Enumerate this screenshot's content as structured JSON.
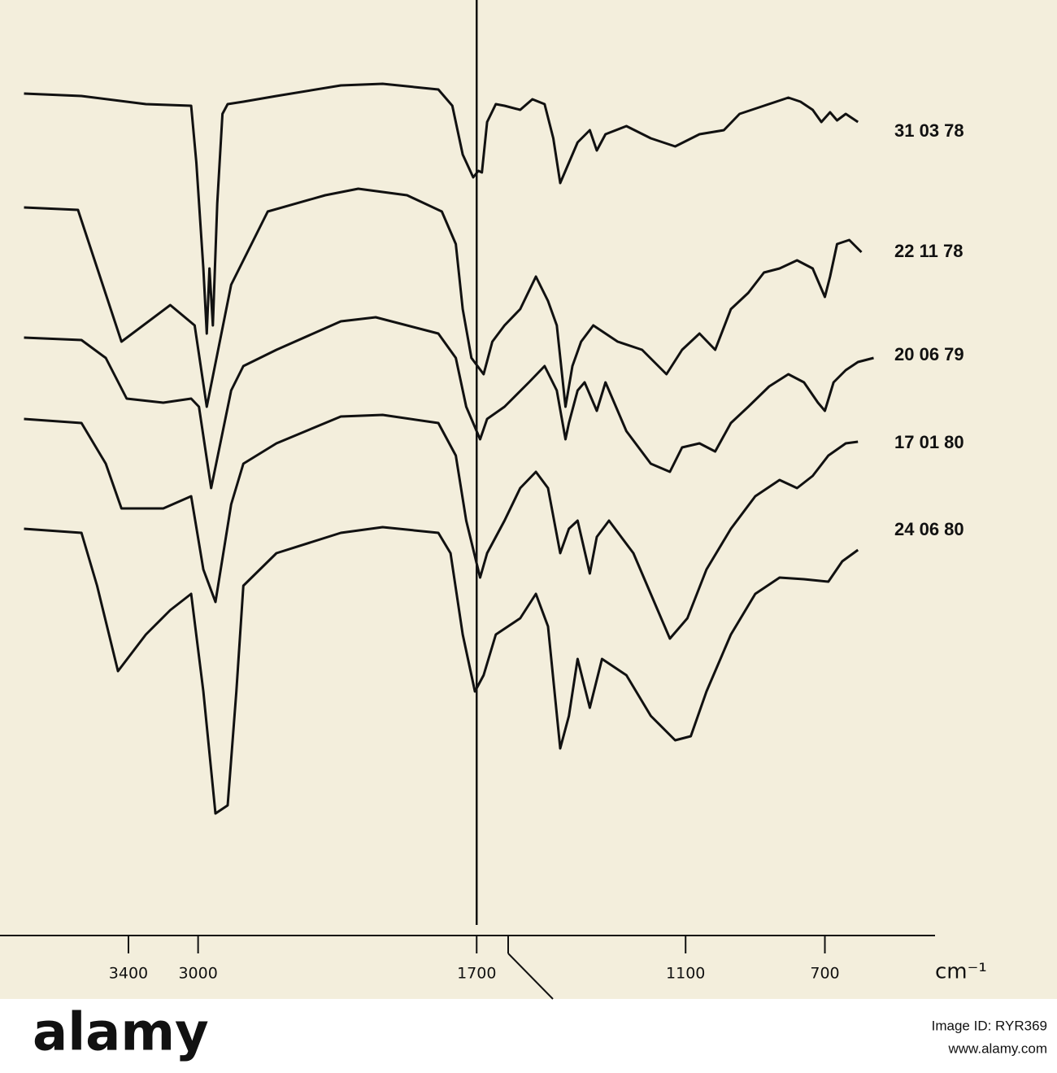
{
  "chart_data": {
    "type": "line",
    "xlabel": "cm⁻¹",
    "xlim": [
      4000,
      400
    ],
    "ylim": [
      0,
      115
    ],
    "xticks": [
      3400,
      3000,
      1700,
      1100,
      700
    ],
    "grid": false,
    "series": [
      {
        "name": "31 03 78",
        "color": "#111111",
        "x": [
          4000,
          3670,
          3300,
          3040,
          3010,
          2970,
          2950,
          2935,
          2915,
          2890,
          2860,
          2830,
          2740,
          2550,
          2180,
          1970,
          1810,
          1770,
          1740,
          1710,
          1695,
          1685,
          1670,
          1645,
          1620,
          1575,
          1540,
          1505,
          1480,
          1460,
          1435,
          1410,
          1375,
          1355,
          1330,
          1270,
          1200,
          1130,
          1060,
          990,
          945,
          875,
          805,
          770,
          735,
          710,
          685,
          665,
          640,
          605
        ],
        "values": [
          103.5,
          103.2,
          102.2,
          102,
          95,
          82,
          74,
          82,
          75,
          90,
          101,
          102.2,
          102.5,
          103.2,
          104.5,
          104.7,
          104,
          102,
          96,
          93.2,
          94,
          93.8,
          100,
          102.2,
          102,
          101.5,
          102.8,
          102.2,
          98,
          92.5,
          95,
          97.5,
          99,
          96.5,
          98.5,
          99.5,
          98,
          97,
          98.5,
          99,
          101,
          102,
          103,
          102.5,
          101.5,
          100,
          101.2,
          100.2,
          101,
          100
        ]
      },
      {
        "name": "22 11 78",
        "color": "#111111",
        "x": [
          4000,
          3690,
          3440,
          3160,
          3020,
          2950,
          2810,
          2740,
          2600,
          2270,
          2080,
          1900,
          1800,
          1760,
          1740,
          1715,
          1680,
          1655,
          1620,
          1575,
          1530,
          1495,
          1470,
          1445,
          1425,
          1400,
          1365,
          1330,
          1295,
          1225,
          1155,
          1110,
          1060,
          1015,
          970,
          920,
          875,
          830,
          780,
          735,
          700,
          685,
          665,
          630,
          595
        ],
        "values": [
          89.5,
          89.2,
          73,
          77.5,
          75,
          65,
          80,
          83,
          89,
          91,
          91.8,
          91,
          89,
          85,
          77,
          71,
          69,
          73,
          75,
          77,
          81,
          78,
          75,
          65,
          70,
          73,
          75,
          74,
          73,
          72,
          69,
          72,
          74,
          72,
          77,
          79,
          81.5,
          82,
          83,
          82,
          78.5,
          81,
          85,
          85.5,
          84
        ]
      },
      {
        "name": "20 06 79",
        "color": "#111111",
        "x": [
          4000,
          3670,
          3530,
          3410,
          3200,
          3040,
          2995,
          2925,
          2810,
          2740,
          2550,
          2180,
          1990,
          1810,
          1760,
          1730,
          1690,
          1670,
          1620,
          1550,
          1505,
          1470,
          1445,
          1435,
          1410,
          1390,
          1355,
          1330,
          1270,
          1200,
          1145,
          1110,
          1060,
          1015,
          970,
          920,
          860,
          805,
          760,
          720,
          700,
          675,
          640,
          605,
          560
        ],
        "values": [
          73.5,
          73.2,
          71,
          66,
          65.5,
          66,
          65,
          55,
          67,
          70,
          72,
          75.5,
          76,
          74,
          71,
          65,
          61,
          63.5,
          65,
          68,
          70,
          67,
          61,
          63,
          67,
          68,
          64.5,
          68,
          62,
          58,
          57,
          60,
          60.5,
          59.5,
          63,
          65,
          67.5,
          69,
          68,
          65.5,
          64.5,
          68,
          69.5,
          70.5,
          71
        ]
      },
      {
        "name": "17 01 80",
        "color": "#111111",
        "x": [
          4000,
          3670,
          3530,
          3440,
          3200,
          3040,
          2970,
          2900,
          2810,
          2740,
          2550,
          2180,
          1970,
          1810,
          1760,
          1730,
          1690,
          1670,
          1620,
          1575,
          1530,
          1495,
          1460,
          1435,
          1410,
          1375,
          1355,
          1320,
          1250,
          1180,
          1145,
          1095,
          1040,
          970,
          900,
          830,
          780,
          735,
          690,
          640,
          605
        ],
        "values": [
          63.5,
          63,
          58,
          52.5,
          52.5,
          54,
          45,
          41,
          53,
          58,
          60.5,
          63.8,
          64,
          63,
          59,
          51,
          44,
          47,
          51,
          55,
          57,
          55,
          47,
          50,
          51,
          44.5,
          49,
          51,
          47,
          40,
          36.5,
          39,
          45,
          50,
          54,
          56,
          55,
          56.5,
          59,
          60.5,
          60.7
        ]
      },
      {
        "name": "24 06 80",
        "color": "#111111",
        "x": [
          4000,
          3670,
          3580,
          3460,
          3300,
          3160,
          3040,
          2970,
          2900,
          2830,
          2780,
          2740,
          2550,
          2180,
          1970,
          1810,
          1775,
          1740,
          1705,
          1680,
          1645,
          1575,
          1530,
          1495,
          1460,
          1435,
          1410,
          1375,
          1340,
          1270,
          1200,
          1130,
          1085,
          1040,
          970,
          900,
          830,
          760,
          690,
          650,
          605
        ],
        "values": [
          50,
          49.5,
          43,
          32.5,
          37,
          40,
          42,
          30,
          15,
          16,
          30,
          43,
          47,
          49.5,
          50.2,
          49.5,
          47,
          37,
          30,
          32,
          37,
          39,
          42,
          38,
          23,
          27,
          34,
          28,
          34,
          32,
          27,
          24,
          24.5,
          30,
          37,
          42,
          44,
          43.8,
          43.5,
          46,
          47.4
        ]
      }
    ]
  },
  "watermark": {
    "brand": "alamy",
    "image_id": "Image ID: RYR369",
    "url": "www.alamy.com"
  }
}
